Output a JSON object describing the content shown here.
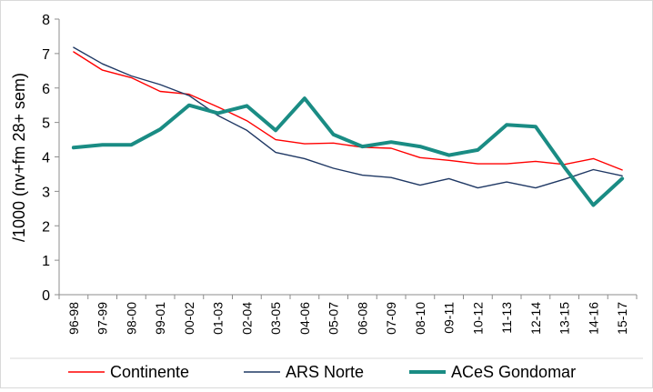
{
  "chart_data": {
    "type": "line",
    "title": "",
    "xlabel": "",
    "ylabel": "/1000 (nv+fm 28+ sem)",
    "ylim": [
      0,
      8
    ],
    "yticks": [
      0,
      1,
      2,
      3,
      4,
      5,
      6,
      7,
      8
    ],
    "grid": false,
    "legend_position": "bottom",
    "categories": [
      "96-98",
      "97-99",
      "98-00",
      "99-01",
      "00-02",
      "01-03",
      "02-04",
      "03-05",
      "04-06",
      "05-07",
      "06-08",
      "07-09",
      "08-10",
      "09-11",
      "10-12",
      "11-13",
      "12-14",
      "13-15",
      "14-16",
      "15-17"
    ],
    "series": [
      {
        "name": "Continente",
        "color": "#ff0000",
        "values": [
          7.05,
          6.52,
          6.3,
          5.9,
          5.82,
          5.45,
          5.05,
          4.5,
          4.38,
          4.4,
          4.28,
          4.25,
          3.98,
          3.9,
          3.8,
          3.8,
          3.87,
          3.78,
          3.95,
          3.62
        ]
      },
      {
        "name": "ARS Norte",
        "color": "#1f3864",
        "values": [
          7.18,
          6.7,
          6.35,
          6.1,
          5.78,
          5.2,
          4.77,
          4.13,
          3.95,
          3.67,
          3.47,
          3.4,
          3.18,
          3.37,
          3.1,
          3.27,
          3.1,
          3.35,
          3.63,
          3.45
        ]
      },
      {
        "name": "ACeS Gondomar",
        "color": "#1a8c84",
        "values": [
          4.27,
          4.35,
          4.35,
          4.8,
          5.5,
          5.27,
          5.48,
          4.77,
          5.7,
          4.65,
          4.3,
          4.43,
          4.3,
          4.05,
          4.2,
          4.93,
          4.88,
          3.7,
          2.6,
          3.37
        ]
      }
    ]
  }
}
